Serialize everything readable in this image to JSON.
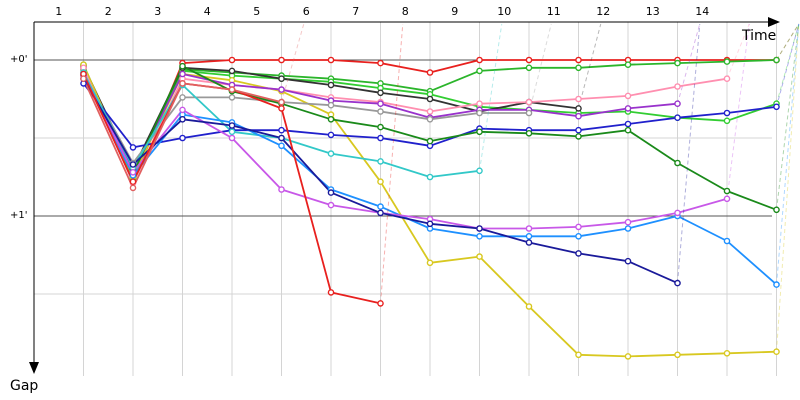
{
  "chart_data": {
    "type": "line",
    "title": "",
    "xlabel": "Time",
    "ylabel": "Gap",
    "x_axis_position": "top",
    "y_axis_inverted": true,
    "laps": [
      "1",
      "2",
      "3",
      "4",
      "5",
      "6",
      "7",
      "8",
      "9",
      "10",
      "11",
      "12",
      "13",
      "14"
    ],
    "ylim": [
      -0.02,
      2.05
    ],
    "y_ticks": [
      {
        "label": "+0'",
        "value": 0
      },
      {
        "label": "+1'",
        "value": 1
      }
    ],
    "grid": true,
    "legend": "none",
    "series": [
      {
        "color": "#e8201e",
        "values": [
          0.05,
          0.78,
          0.02,
          0.0,
          0.0,
          0.0,
          0.02,
          0.08,
          0.0,
          0.0,
          0.0,
          0.0,
          0.0,
          0.0,
          0.0
        ]
      },
      {
        "color": "#2bb52b",
        "values": [
          0.03,
          0.75,
          0.06,
          0.08,
          0.1,
          0.12,
          0.15,
          0.2,
          0.07,
          0.05,
          0.05,
          0.03,
          0.02,
          0.01,
          0.0
        ]
      },
      {
        "color": "#32cd32",
        "values": [
          0.06,
          0.76,
          0.07,
          0.1,
          0.12,
          0.14,
          0.18,
          0.22,
          0.3,
          0.32,
          0.34,
          0.33,
          0.37,
          0.39,
          0.28
        ]
      },
      {
        "color": "#333333",
        "values": [
          0.04,
          0.7,
          0.05,
          0.07,
          0.12,
          0.16,
          0.21,
          0.25,
          0.33,
          0.27,
          0.31
        ]
      },
      {
        "color": "#d8c820",
        "values": [
          0.03,
          0.75,
          0.09,
          0.13,
          0.2,
          0.35,
          0.78,
          1.3,
          1.26,
          1.58,
          1.89,
          1.9,
          1.89,
          1.88,
          1.87
        ]
      },
      {
        "color": "#ff8fb0",
        "values": [
          0.05,
          0.79,
          0.12,
          0.16,
          0.19,
          0.24,
          0.27,
          0.33,
          0.28,
          0.27,
          0.25,
          0.23,
          0.17,
          0.12
        ]
      },
      {
        "color": "#9932cc",
        "values": [
          0.08,
          0.72,
          0.09,
          0.16,
          0.19,
          0.26,
          0.28,
          0.37,
          0.32,
          0.32,
          0.36,
          0.31,
          0.28
        ]
      },
      {
        "color": "#999999",
        "values": [
          0.09,
          0.66,
          0.24,
          0.24,
          0.27,
          0.29,
          0.33,
          0.38,
          0.34,
          0.34
        ]
      },
      {
        "color": "#2020cc",
        "values": [
          0.15,
          0.56,
          0.5,
          0.45,
          0.45,
          0.48,
          0.5,
          0.55,
          0.44,
          0.45,
          0.45,
          0.41,
          0.37,
          0.34,
          0.3
        ]
      },
      {
        "color": "#1a8a1a",
        "values": [
          0.1,
          0.73,
          0.04,
          0.2,
          0.28,
          0.38,
          0.43,
          0.52,
          0.46,
          0.47,
          0.49,
          0.45,
          0.66,
          0.84,
          0.96
        ]
      },
      {
        "color": "#32c8c8",
        "values": [
          0.08,
          0.69,
          0.16,
          0.46,
          0.5,
          0.6,
          0.65,
          0.75,
          0.71
        ]
      },
      {
        "color": "#1e90ff",
        "values": [
          0.09,
          0.74,
          0.35,
          0.4,
          0.55,
          0.83,
          0.94,
          1.08,
          1.13,
          1.13,
          1.13,
          1.08,
          1.0,
          1.16,
          1.44
        ]
      },
      {
        "color": "#c858e8",
        "values": [
          0.1,
          0.72,
          0.32,
          0.5,
          0.83,
          0.93,
          0.98,
          1.02,
          1.08,
          1.08,
          1.07,
          1.04,
          0.98,
          0.89
        ]
      },
      {
        "color": "#1a1a9a",
        "values": [
          0.12,
          0.67,
          0.38,
          0.42,
          0.5,
          0.85,
          0.98,
          1.05,
          1.08,
          1.17,
          1.24,
          1.29,
          1.43
        ]
      },
      {
        "color": "#e8201e",
        "values": [
          0.09,
          0.78,
          0.15,
          0.19,
          0.31,
          1.49,
          1.56
        ]
      },
      {
        "color": "#e06060",
        "values": [
          0.12,
          0.82,
          0.15,
          0.19,
          0.27
        ]
      }
    ]
  }
}
